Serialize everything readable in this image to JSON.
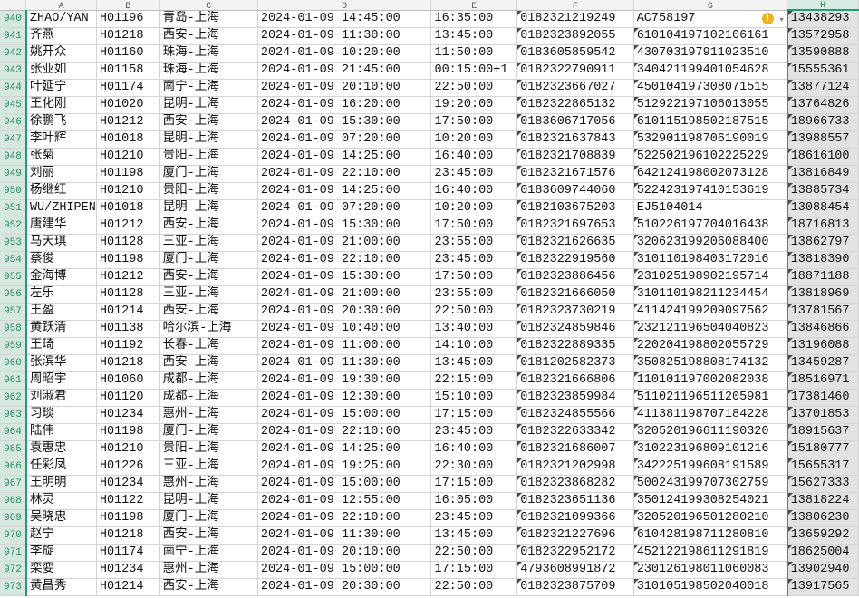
{
  "columns": [
    "A",
    "B",
    "C",
    "D",
    "E",
    "F",
    "G",
    "H"
  ],
  "selected_column": "H",
  "accent_color": "#1f9f6f",
  "rows": [
    [
      "940",
      "ZHAO/YAN",
      "H01196",
      "青岛-上海",
      "2024-01-09 14:45:00",
      "16:35:00",
      "0182321219249",
      "AC758197",
      "13438293"
    ],
    [
      "941",
      "齐燕",
      "H01218",
      "西安-上海",
      "2024-01-09 11:30:00",
      "13:45:00",
      "0182323892055",
      "610104197102106161",
      "13572958"
    ],
    [
      "942",
      "姚开众",
      "H01160",
      "珠海-上海",
      "2024-01-09 10:20:00",
      "11:50:00",
      "0183605859542",
      "430703197911023510",
      "13590888"
    ],
    [
      "943",
      "张亚如",
      "H01158",
      "珠海-上海",
      "2024-01-09 21:45:00",
      "00:15:00+1",
      "0182322790911",
      "340421199401054628",
      "15555361"
    ],
    [
      "944",
      "叶延宁",
      "H01174",
      "南宁-上海",
      "2024-01-09 20:10:00",
      "22:50:00",
      "0182323667027",
      "450104197308071515",
      "13877124"
    ],
    [
      "945",
      "王化刚",
      "H01020",
      "昆明-上海",
      "2024-01-09 16:20:00",
      "19:20:00",
      "0182322865132",
      "512922197106013055",
      "13764826"
    ],
    [
      "946",
      "徐鹏飞",
      "H01212",
      "西安-上海",
      "2024-01-09 15:30:00",
      "17:50:00",
      "0183606717056",
      "610115198502187515",
      "18966733"
    ],
    [
      "947",
      "李叶辉",
      "H01018",
      "昆明-上海",
      "2024-01-09 07:20:00",
      "10:20:00",
      "0182321637843",
      "532901198706190019",
      "13988557"
    ],
    [
      "948",
      "张菊",
      "H01210",
      "贵阳-上海",
      "2024-01-09 14:25:00",
      "16:40:00",
      "0182321708839",
      "522502196102225229",
      "18616100"
    ],
    [
      "949",
      "刘丽",
      "H01198",
      "厦门-上海",
      "2024-01-09 22:10:00",
      "23:45:00",
      "0182321671576",
      "642124198002073128",
      "13816849"
    ],
    [
      "950",
      "杨继红",
      "H01210",
      "贵阳-上海",
      "2024-01-09 14:25:00",
      "16:40:00",
      "0183609744060",
      "522423197410153619",
      "13885734"
    ],
    [
      "951",
      "WU/ZHIPEN",
      "H01018",
      "昆明-上海",
      "2024-01-09 07:20:00",
      "10:20:00",
      "0182103675203",
      "EJ5104014",
      "13088454"
    ],
    [
      "952",
      "唐建华",
      "H01212",
      "西安-上海",
      "2024-01-09 15:30:00",
      "17:50:00",
      "0182321697653",
      "510226197704016438",
      "18716813"
    ],
    [
      "953",
      "马天琪",
      "H01128",
      "三亚-上海",
      "2024-01-09 21:00:00",
      "23:55:00",
      "0182321626635",
      "320623199206088400",
      "13862797"
    ],
    [
      "954",
      "蔡俊",
      "H01198",
      "厦门-上海",
      "2024-01-09 22:10:00",
      "23:45:00",
      "0182322919560",
      "310110198403172016",
      "13818390"
    ],
    [
      "955",
      "金海博",
      "H01212",
      "西安-上海",
      "2024-01-09 15:30:00",
      "17:50:00",
      "0182323886456",
      "231025198902195714",
      "18871188"
    ],
    [
      "956",
      "左乐",
      "H01128",
      "三亚-上海",
      "2024-01-09 21:00:00",
      "23:55:00",
      "0182321666050",
      "310110198211234454",
      "13818969"
    ],
    [
      "957",
      "王盈",
      "H01214",
      "西安-上海",
      "2024-01-09 20:30:00",
      "22:50:00",
      "0182323730219",
      "411424199209097562",
      "13781567"
    ],
    [
      "958",
      "黄跃清",
      "H01138",
      "哈尔滨-上海",
      "2024-01-09 10:40:00",
      "13:40:00",
      "0182324859846",
      "232121196504040823",
      "13846866"
    ],
    [
      "959",
      "王琦",
      "H01192",
      "长春-上海",
      "2024-01-09 11:00:00",
      "14:10:00",
      "0182322889335",
      "220204198802055729",
      "13196088"
    ],
    [
      "960",
      "张滨华",
      "H01218",
      "西安-上海",
      "2024-01-09 11:30:00",
      "13:45:00",
      "0181202582373",
      "350825198808174132",
      "13459287"
    ],
    [
      "961",
      "周昭宇",
      "H01060",
      "成都-上海",
      "2024-01-09 19:30:00",
      "22:15:00",
      "0182321666806",
      "110101197002082038",
      "18516971"
    ],
    [
      "962",
      "刘淑君",
      "H01120",
      "成都-上海",
      "2024-01-09 12:30:00",
      "15:10:00",
      "0182323859984",
      "511021196511205981",
      "17381460"
    ],
    [
      "963",
      "习琰",
      "H01234",
      "惠州-上海",
      "2024-01-09 15:00:00",
      "17:15:00",
      "0182324855566",
      "411381198707184228",
      "13701853"
    ],
    [
      "964",
      "陆伟",
      "H01198",
      "厦门-上海",
      "2024-01-09 22:10:00",
      "23:45:00",
      "0182322633342",
      "320520196611190320",
      "18915637"
    ],
    [
      "965",
      "袁惠忠",
      "H01210",
      "贵阳-上海",
      "2024-01-09 14:25:00",
      "16:40:00",
      "0182321686007",
      "310223196809101216",
      "15180777"
    ],
    [
      "966",
      "任彩凤",
      "H01226",
      "三亚-上海",
      "2024-01-09 19:25:00",
      "22:30:00",
      "0182321202998",
      "342225199608191589",
      "15655317"
    ],
    [
      "967",
      "王明明",
      "H01234",
      "惠州-上海",
      "2024-01-09 15:00:00",
      "17:15:00",
      "0182323868282",
      "500243199707302759",
      "15627333"
    ],
    [
      "968",
      "林灵",
      "H01122",
      "昆明-上海",
      "2024-01-09 12:55:00",
      "16:05:00",
      "0182323651136",
      "350124199308254021",
      "13818224"
    ],
    [
      "969",
      "吴晓忠",
      "H01198",
      "厦门-上海",
      "2024-01-09 22:10:00",
      "23:45:00",
      "0182321099366",
      "320520196501280210",
      "13806230"
    ],
    [
      "970",
      "赵宁",
      "H01218",
      "西安-上海",
      "2024-01-09 11:30:00",
      "13:45:00",
      "0182321227696",
      "610428198711280810",
      "13659292"
    ],
    [
      "971",
      "李旋",
      "H01174",
      "南宁-上海",
      "2024-01-09 20:10:00",
      "22:50:00",
      "0182322952172",
      "452122198611291819",
      "18625004"
    ],
    [
      "972",
      "栾娈",
      "H01234",
      "惠州-上海",
      "2024-01-09 15:00:00",
      "17:15:00",
      "4793608991872",
      "230126198011060083",
      "13902940"
    ],
    [
      "973",
      "黄昌秀",
      "H01214",
      "西安-上海",
      "2024-01-09 20:30:00",
      "22:50:00",
      "0182323875709",
      "310105198502040018",
      "13917565"
    ]
  ],
  "warning_icon": "exclamation-circle-icon",
  "warning_symbol": "!",
  "dropdown_symbol": "▾"
}
